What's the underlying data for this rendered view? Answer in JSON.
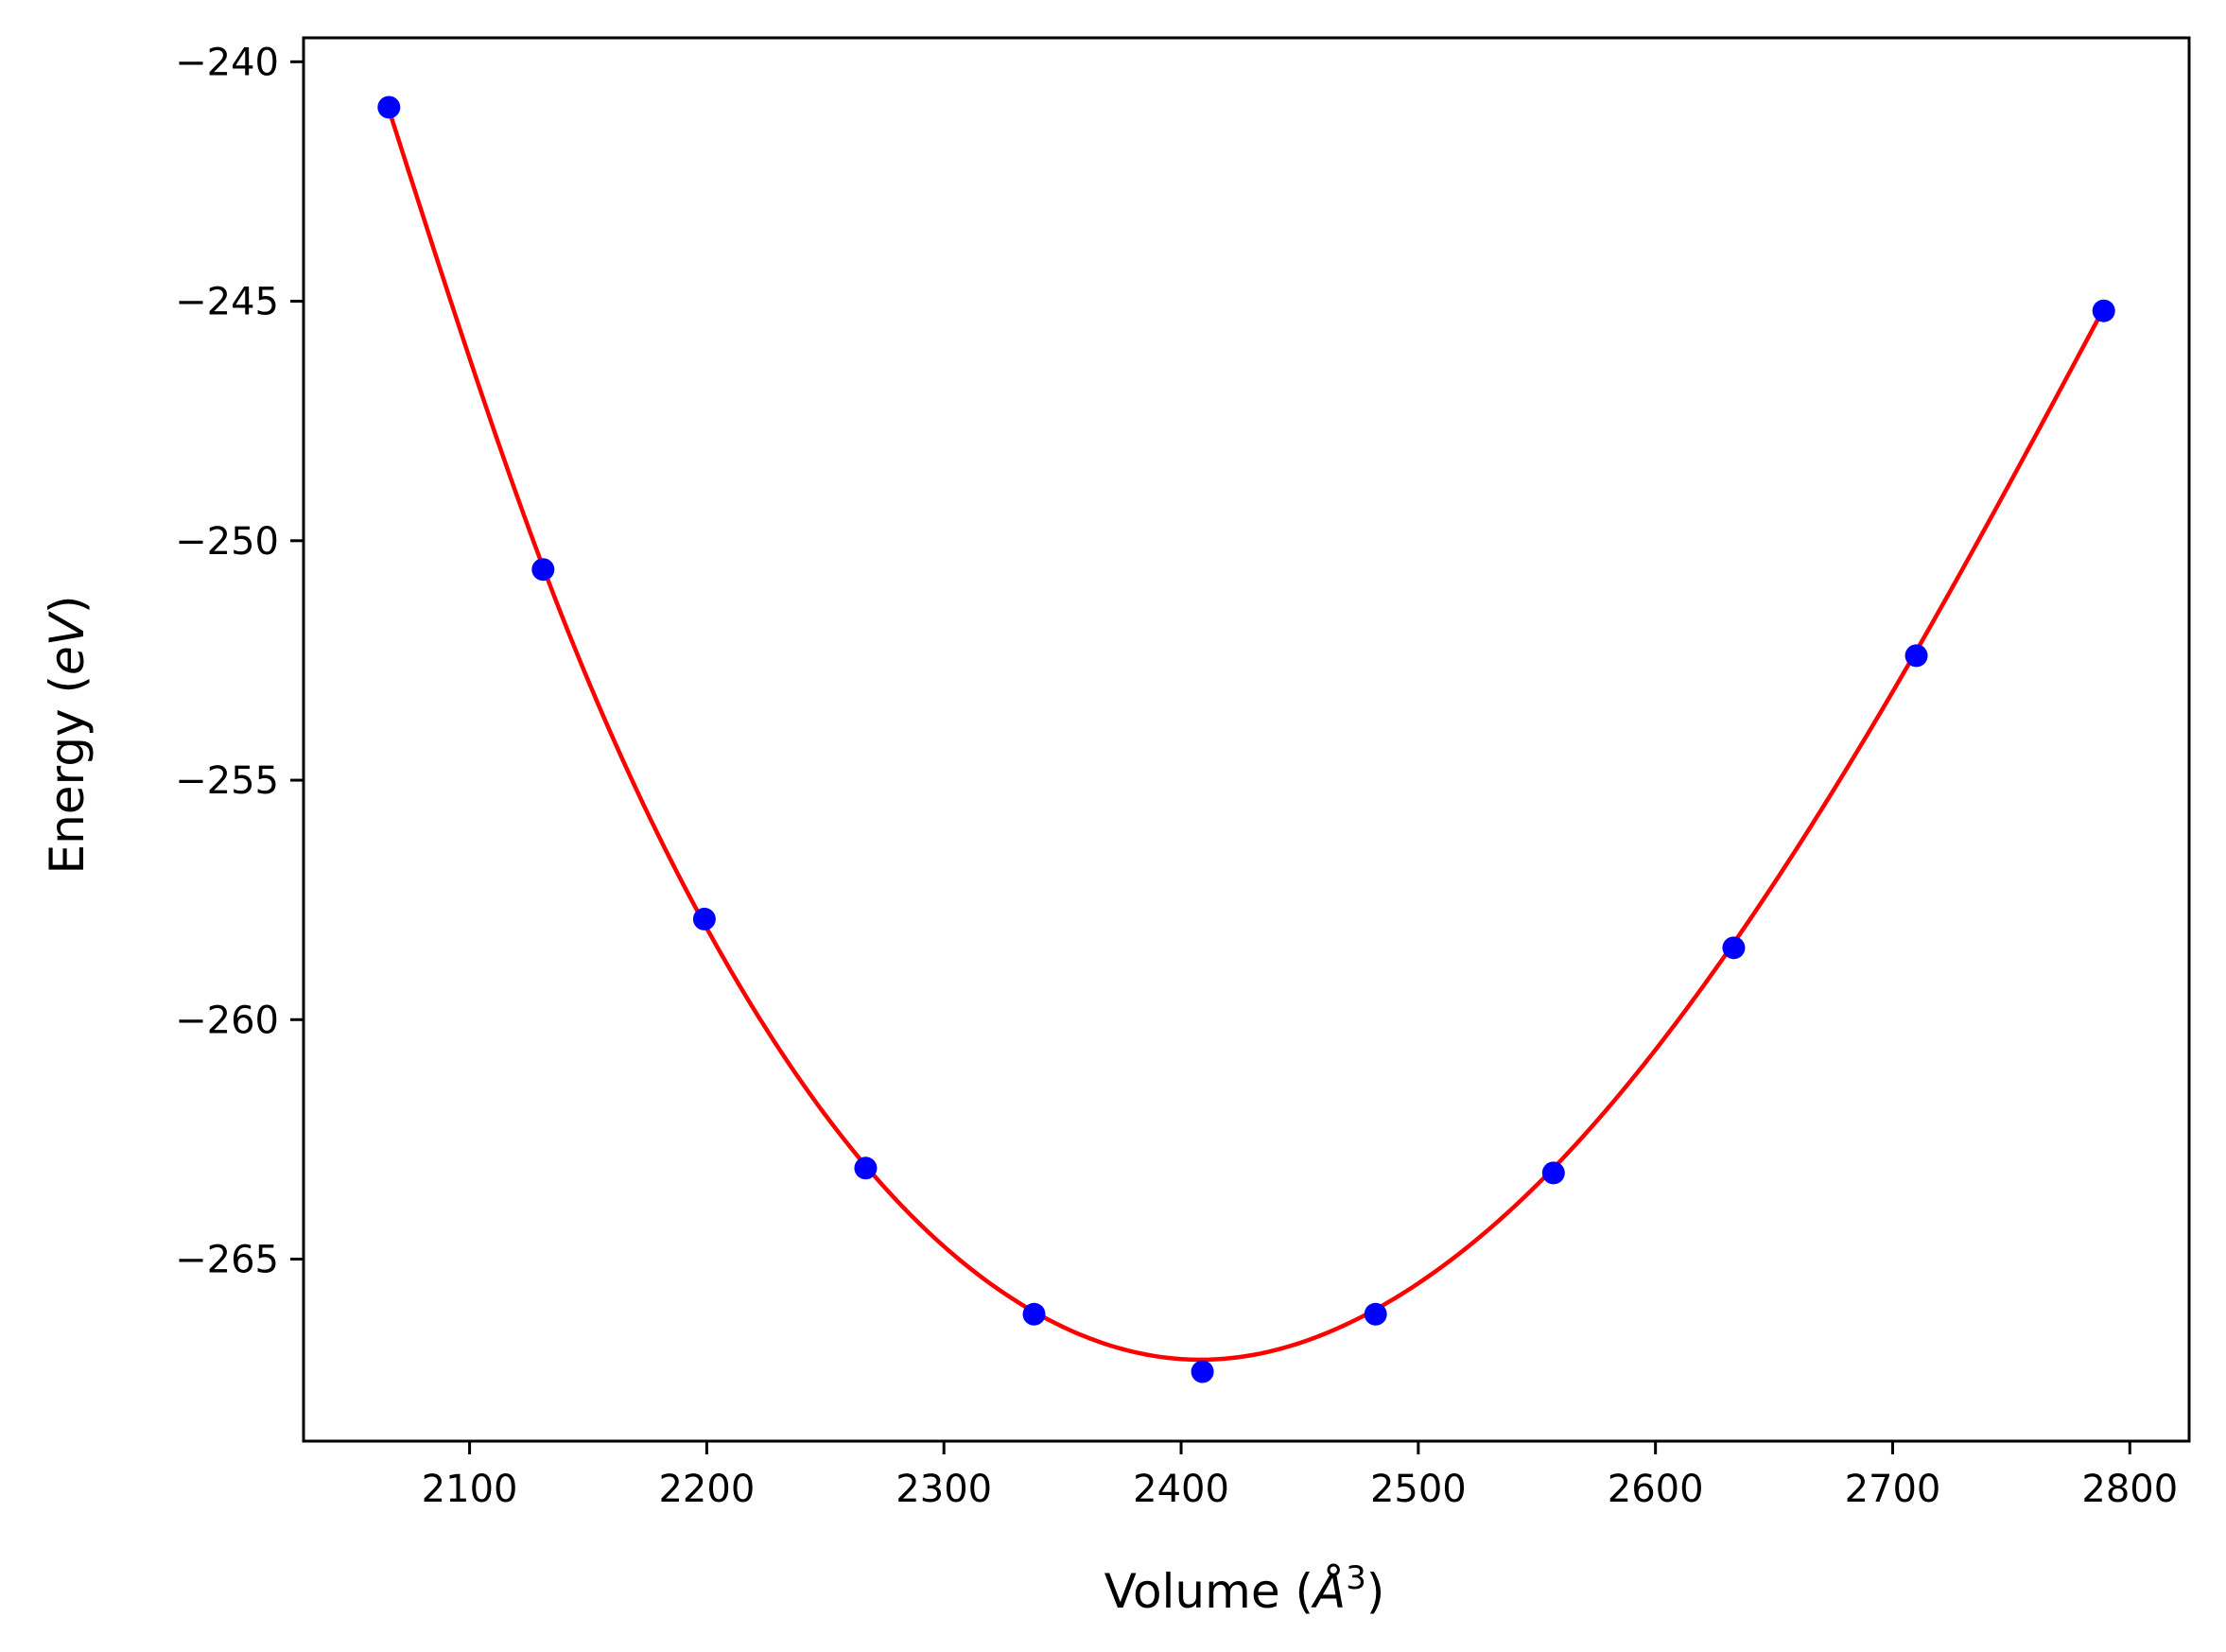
{
  "chart_data": {
    "type": "scatter",
    "title": "",
    "xlabel": "Volume (",
    "xlabel_symbol": "Å",
    "xlabel_exponent": "3",
    "xlabel_close": ")",
    "ylabel": "Energy (",
    "ylabel_unit": "eV",
    "ylabel_close": ")",
    "xlim": [
      2030,
      2825
    ],
    "ylim": [
      -268.8,
      -239.5
    ],
    "xticks": [
      2100,
      2200,
      2300,
      2400,
      2500,
      2600,
      2700,
      2800
    ],
    "xtick_labels": [
      "2100",
      "2200",
      "2300",
      "2400",
      "2500",
      "2600",
      "2700",
      "2800"
    ],
    "yticks": [
      -240,
      -245,
      -250,
      -255,
      -260,
      -265
    ],
    "ytick_labels": [
      "−240",
      "−245",
      "−250",
      "−255",
      "−260",
      "−265"
    ],
    "grid": false,
    "legend": "none",
    "series": [
      {
        "type": "scatter",
        "color": "#0000ff",
        "x": [
          2066,
          2131,
          2199,
          2267,
          2338,
          2409,
          2482,
          2557,
          2633,
          2710,
          2789
        ],
        "y": [
          -240.95,
          -250.6,
          -257.9,
          -263.1,
          -266.15,
          -267.35,
          -266.15,
          -263.2,
          -258.5,
          -252.4,
          -245.2
        ]
      },
      {
        "type": "line",
        "color": "#ff0000",
        "x": [
          2066,
          2131,
          2199,
          2267,
          2338,
          2409,
          2482,
          2557,
          2633,
          2710,
          2789
        ],
        "y": [
          -241.0,
          -250.55,
          -258.0,
          -263.05,
          -266.1,
          -267.1,
          -266.05,
          -263.1,
          -258.4,
          -252.3,
          -245.15
        ]
      }
    ]
  }
}
